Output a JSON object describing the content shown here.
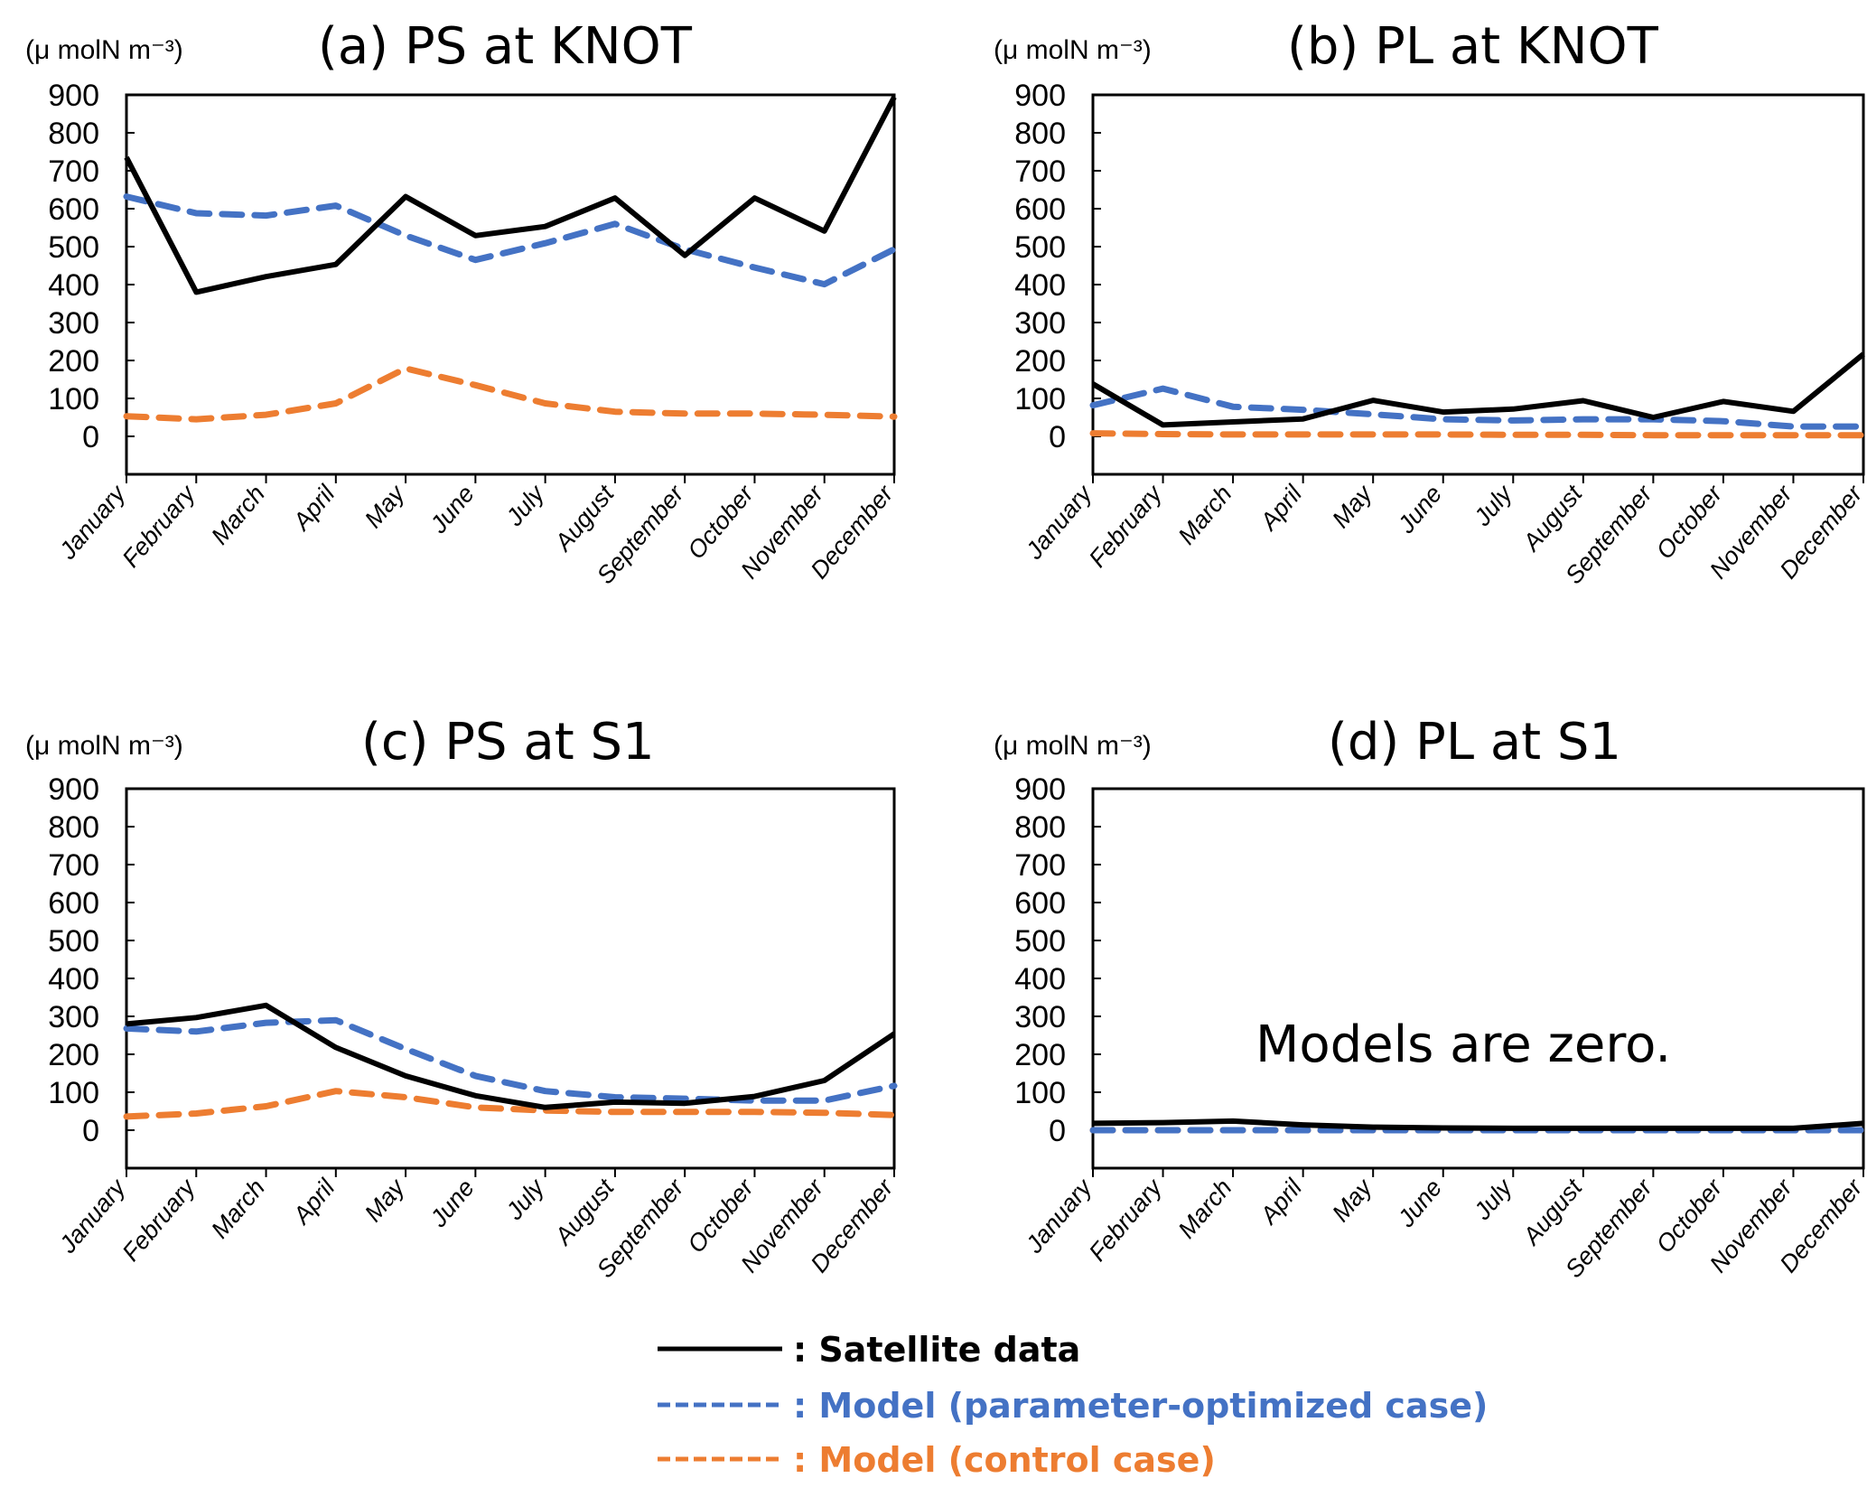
{
  "legend": [
    {
      "key": "satellite",
      "label": ": Satellite data",
      "color": "#000000",
      "dash": "solid"
    },
    {
      "key": "optimized",
      "label": ": Model (parameter-optimized case)",
      "color": "#4472C4",
      "dash": "dashed"
    },
    {
      "key": "control",
      "label": ": Model (control case)",
      "color": "#ED7D31",
      "dash": "dashed"
    }
  ],
  "chart_data": [
    {
      "type": "line",
      "title": "(a) PS at KNOT",
      "ylabel": "(μ molN m⁻³)",
      "xlabel": "",
      "categories": [
        "January",
        "February",
        "March",
        "April",
        "May",
        "June",
        "July",
        "August",
        "September",
        "October",
        "November",
        "December"
      ],
      "yticks": [
        "900",
        "800",
        "700",
        "600",
        "500",
        "400",
        "300",
        "200",
        "100",
        "0"
      ],
      "ylim": [
        -100,
        900
      ],
      "grid": false,
      "series": [
        {
          "name": "Satellite data",
          "key": "satellite",
          "values": [
            735,
            380,
            421,
            453,
            632,
            529,
            553,
            628,
            477,
            628,
            541,
            894
          ]
        },
        {
          "name": "Model (parameter-optimized case)",
          "key": "optimized",
          "values": [
            632,
            588,
            582,
            608,
            529,
            465,
            509,
            560,
            493,
            445,
            401,
            493
          ]
        },
        {
          "name": "Model (control case)",
          "key": "control",
          "values": [
            53,
            45,
            57,
            87,
            179,
            135,
            87,
            65,
            60,
            60,
            57,
            52
          ]
        }
      ]
    },
    {
      "type": "line",
      "title": "(b) PL at KNOT",
      "ylabel": "(μ molN m⁻³)",
      "xlabel": "",
      "categories": [
        "January",
        "February",
        "March",
        "April",
        "May",
        "June",
        "July",
        "August",
        "September",
        "October",
        "November",
        "December"
      ],
      "yticks": [
        "900",
        "800",
        "700",
        "600",
        "500",
        "400",
        "300",
        "200",
        "100",
        "0"
      ],
      "ylim": [
        -100,
        900
      ],
      "grid": false,
      "series": [
        {
          "name": "Satellite data",
          "key": "satellite",
          "values": [
            138,
            30,
            38,
            46,
            95,
            64,
            72,
            94,
            50,
            92,
            66,
            217
          ]
        },
        {
          "name": "Model (parameter-optimized case)",
          "key": "optimized",
          "values": [
            82,
            126,
            78,
            70,
            58,
            45,
            42,
            45,
            45,
            40,
            26,
            26
          ]
        },
        {
          "name": "Model (control case)",
          "key": "control",
          "values": [
            8,
            6,
            5,
            5,
            5,
            5,
            4,
            4,
            3,
            3,
            3,
            3
          ]
        }
      ]
    },
    {
      "type": "line",
      "title": "(c) PS at S1",
      "ylabel": "(μ molN m⁻³)",
      "xlabel": "",
      "categories": [
        "January",
        "February",
        "March",
        "April",
        "May",
        "June",
        "July",
        "August",
        "September",
        "October",
        "November",
        "December"
      ],
      "yticks": [
        "900",
        "800",
        "700",
        "600",
        "500",
        "400",
        "300",
        "200",
        "100",
        "0"
      ],
      "ylim": [
        -100,
        900
      ],
      "grid": false,
      "series": [
        {
          "name": "Satellite data",
          "key": "satellite",
          "values": [
            280,
            297,
            329,
            218,
            143,
            91,
            60,
            74,
            71,
            89,
            131,
            254
          ]
        },
        {
          "name": "Model (parameter-optimized case)",
          "key": "optimized",
          "values": [
            268,
            260,
            283,
            290,
            214,
            143,
            103,
            87,
            83,
            78,
            78,
            117
          ]
        },
        {
          "name": "Model (control case)",
          "key": "control",
          "values": [
            36,
            44,
            63,
            103,
            87,
            60,
            52,
            48,
            48,
            48,
            46,
            40
          ]
        }
      ]
    },
    {
      "type": "line",
      "title": "(d) PL at S1",
      "ylabel": "(μ molN m⁻³)",
      "xlabel": "",
      "annotation": "Models are zero.",
      "categories": [
        "January",
        "February",
        "March",
        "April",
        "May",
        "June",
        "July",
        "August",
        "September",
        "October",
        "November",
        "December"
      ],
      "yticks": [
        "900",
        "800",
        "700",
        "600",
        "500",
        "400",
        "300",
        "200",
        "100",
        "0"
      ],
      "ylim": [
        -100,
        900
      ],
      "grid": false,
      "series": [
        {
          "name": "Satellite data",
          "key": "satellite",
          "values": [
            18,
            20,
            24,
            14,
            8,
            6,
            5,
            5,
            5,
            5,
            5,
            18
          ]
        },
        {
          "name": "Model (parameter-optimized case)",
          "key": "optimized",
          "values": [
            0,
            0,
            0,
            0,
            0,
            0,
            0,
            0,
            0,
            0,
            0,
            0
          ]
        },
        {
          "name": "Model (control case)",
          "key": "control",
          "values": [
            0,
            0,
            0,
            0,
            0,
            0,
            0,
            0,
            0,
            0,
            0,
            0
          ]
        }
      ]
    }
  ]
}
